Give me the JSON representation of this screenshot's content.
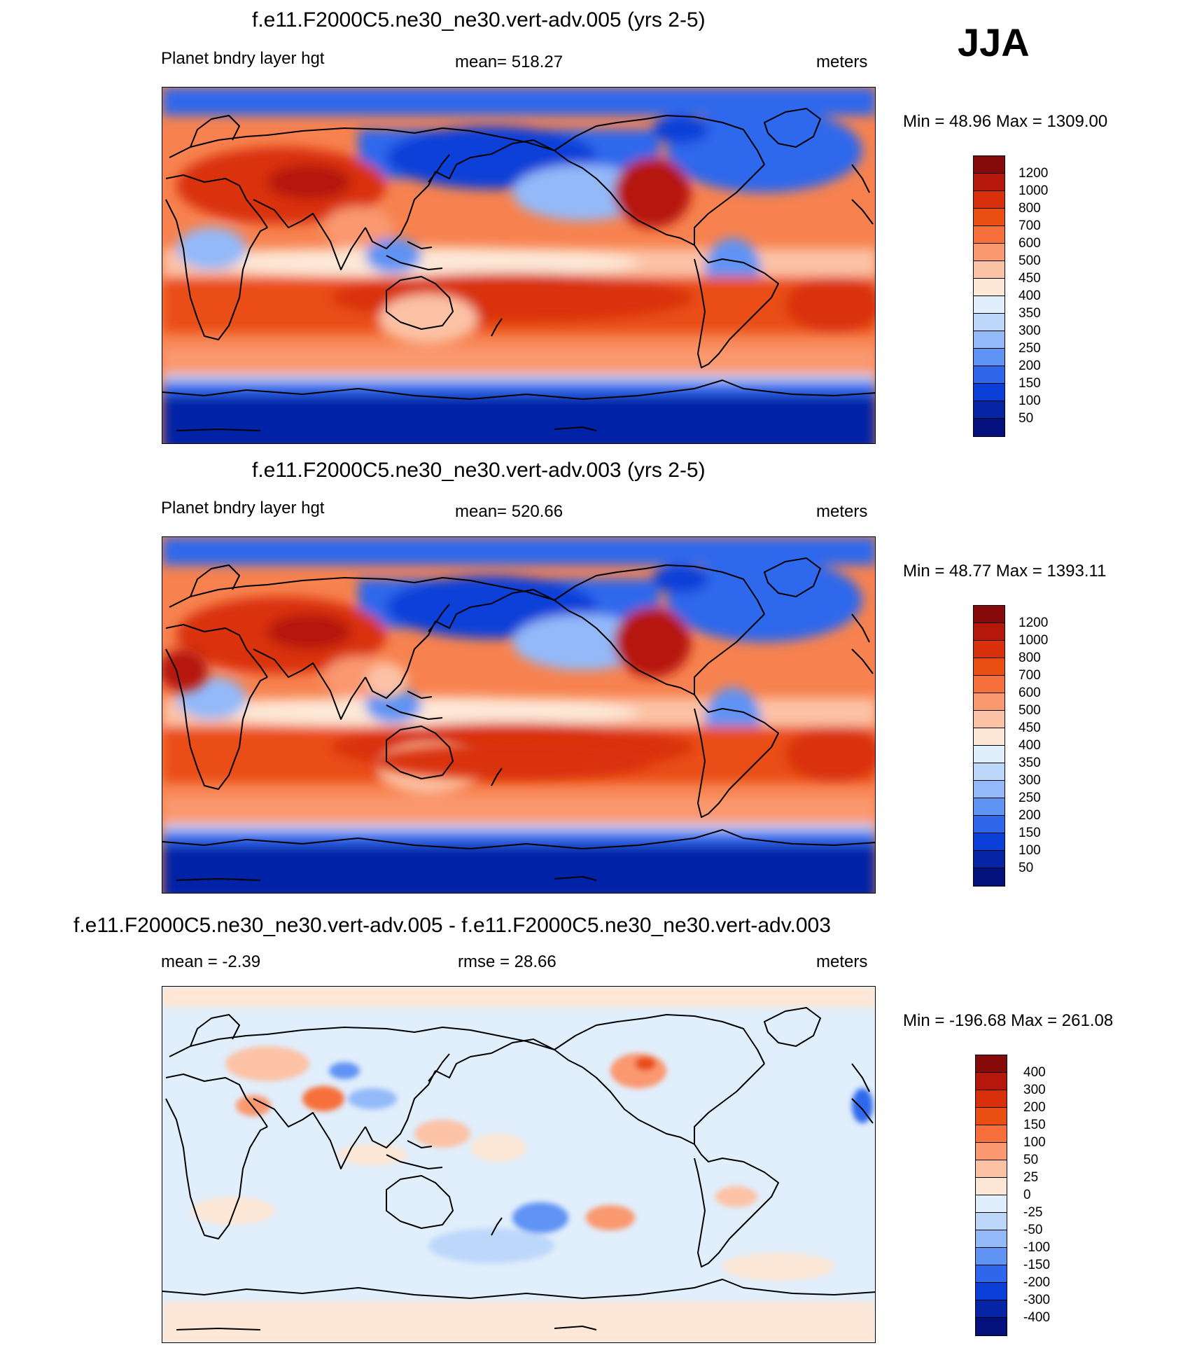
{
  "season": "JJA",
  "panels": [
    {
      "title": "f.e11.F2000C5.ne30_ne30.vert-adv.005 (yrs 2-5)",
      "left_label": "Planet bndry layer hgt",
      "center_label": "mean= 518.27",
      "right_label": "meters",
      "minmax": "Min =  48.96 Max = 1309.00",
      "kind": "abs",
      "colorbar": {
        "labels": [
          "1200",
          "1000",
          "800",
          "700",
          "600",
          "500",
          "450",
          "400",
          "350",
          "300",
          "250",
          "200",
          "150",
          "100",
          "50"
        ],
        "colors": [
          "#870a0a",
          "#b5180b",
          "#d9300b",
          "#ea4e12",
          "#f76f3a",
          "#fa9870",
          "#fcc2a6",
          "#fde7d6",
          "#e1eefb",
          "#bdd7fb",
          "#93b9f9",
          "#5f93f4",
          "#2f67ec",
          "#0b40d8",
          "#0624a6",
          "#04107c"
        ]
      }
    },
    {
      "title": "f.e11.F2000C5.ne30_ne30.vert-adv.003 (yrs 2-5)",
      "left_label": "Planet bndry layer hgt",
      "center_label": "mean= 520.66",
      "right_label": "meters",
      "minmax": "Min =  48.77 Max = 1393.11",
      "kind": "abs",
      "colorbar": {
        "labels": [
          "1200",
          "1000",
          "800",
          "700",
          "600",
          "500",
          "450",
          "400",
          "350",
          "300",
          "250",
          "200",
          "150",
          "100",
          "50"
        ],
        "colors": [
          "#870a0a",
          "#b5180b",
          "#d9300b",
          "#ea4e12",
          "#f76f3a",
          "#fa9870",
          "#fcc2a6",
          "#fde7d6",
          "#e1eefb",
          "#bdd7fb",
          "#93b9f9",
          "#5f93f4",
          "#2f67ec",
          "#0b40d8",
          "#0624a6",
          "#04107c"
        ]
      }
    },
    {
      "title": "f.e11.F2000C5.ne30_ne30.vert-adv.005 - f.e11.F2000C5.ne30_ne30.vert-adv.003",
      "left_label": "mean =  -2.39",
      "center_label": "rmse =  28.66",
      "right_label": "meters",
      "minmax": "Min = -196.68 Max = 261.08",
      "kind": "diff",
      "colorbar": {
        "labels": [
          "400",
          "300",
          "200",
          "150",
          "100",
          "50",
          "25",
          "0",
          "-25",
          "-50",
          "-100",
          "-150",
          "-200",
          "-300",
          "-400"
        ],
        "colors": [
          "#870a0a",
          "#b5180b",
          "#d9300b",
          "#ea4e12",
          "#f76f3a",
          "#fa9870",
          "#fcc2a6",
          "#fde7d6",
          "#e1eefb",
          "#bdd7fb",
          "#93b9f9",
          "#5f93f4",
          "#2f67ec",
          "#0b40d8",
          "#0624a6",
          "#04107c"
        ]
      }
    }
  ]
}
